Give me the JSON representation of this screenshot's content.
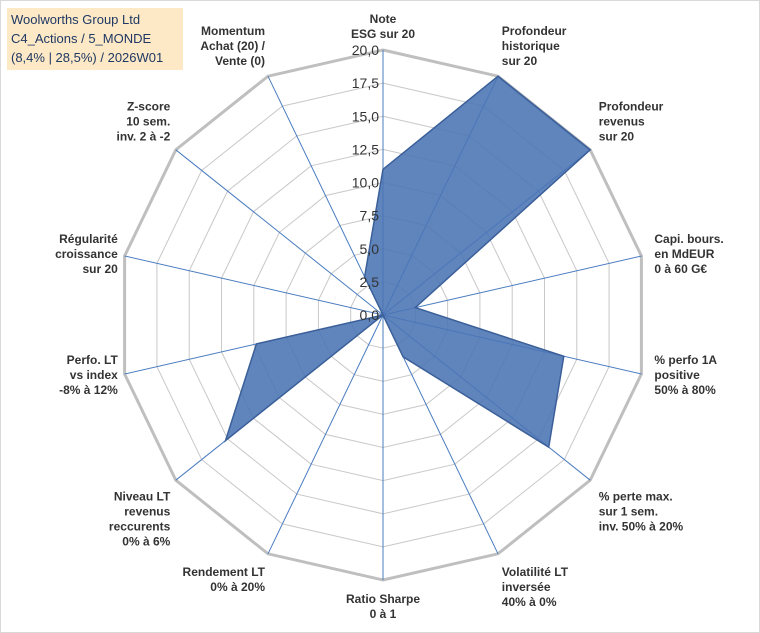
{
  "title_box": {
    "line1": "Woolworths Group Ltd",
    "line2": "C4_Actions / 5_MONDE",
    "line3": "(8,4% | 28,5%) / 2026W01"
  },
  "colors": {
    "fill": "#4a74b4",
    "stroke": "#3b5f99",
    "spokes": "#4a7cc0",
    "rings": "#c8c8c8",
    "outer": "#bfbfbf",
    "title_bg": "#fde9c6",
    "title_text": "#1f3864"
  },
  "chart_data": {
    "type": "radar",
    "title": "Woolworths Group Ltd",
    "rmin": 0,
    "rmax": 20,
    "ticks": [
      "0,0",
      "2,5",
      "5,0",
      "7,5",
      "10,0",
      "12,5",
      "15,0",
      "17,5",
      "20,0"
    ],
    "axes": [
      {
        "label": [
          "Note",
          "ESG sur 20"
        ],
        "value": 11.0
      },
      {
        "label": [
          "Profondeur",
          "historique",
          "sur 20"
        ],
        "value": 20.0
      },
      {
        "label": [
          "Profondeur",
          "revenus",
          "sur 20"
        ],
        "value": 20.0
      },
      {
        "label": [
          "Capi. bours.",
          "en MdEUR",
          "0 à 60 G€"
        ],
        "value": 2.5
      },
      {
        "label": [
          "% perfo 1A",
          "positive",
          "50% à 80%"
        ],
        "value": 14.0
      },
      {
        "label": [
          "% perte max.",
          "sur 1 sem.",
          "inv. 50% à 20%"
        ],
        "value": 16.0
      },
      {
        "label": [
          "Volatilité LT",
          "inversée",
          "40% à 0%"
        ],
        "value": 3.5
      },
      {
        "label": [
          "Ratio Sharpe",
          "0 à 1"
        ],
        "value": 0.0
      },
      {
        "label": [
          "Rendement LT",
          "0% à 20%"
        ],
        "value": 0.0
      },
      {
        "label": [
          "Niveau LT",
          "revenus",
          "reccurents",
          "0% à 6%"
        ],
        "value": 15.2
      },
      {
        "label": [
          "Perfo. LT",
          "vs index",
          "-8% à 12%"
        ],
        "value": 9.8
      },
      {
        "label": [
          "Régularité",
          "croissance",
          "sur 20"
        ],
        "value": 0.0
      },
      {
        "label": [
          "Z-score",
          "10 sem.",
          "inv. 2 à -2"
        ],
        "value": 0.0
      },
      {
        "label": [
          "Momentum",
          "Achat (20) /",
          "Vente (0)"
        ],
        "value": 3.2
      }
    ]
  }
}
